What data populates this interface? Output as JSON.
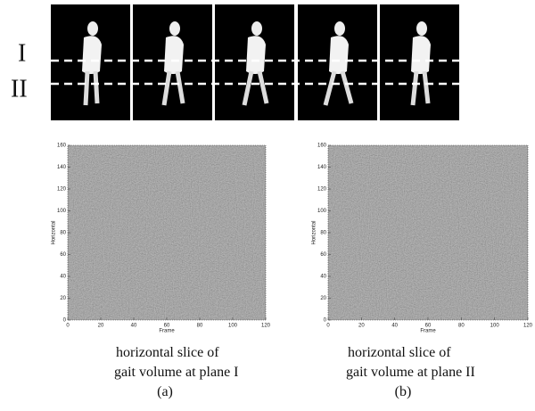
{
  "planes": [
    "I",
    "II"
  ],
  "plots": [
    {
      "xlabel": "Frame",
      "ylabel": "Horizontal",
      "xlim": [
        0,
        120
      ],
      "ylim": [
        0,
        160
      ],
      "xticks": [
        0,
        20,
        40,
        60,
        80,
        100,
        120
      ],
      "yticks": [
        0,
        20,
        40,
        60,
        80,
        100,
        120,
        140,
        160
      ],
      "caption": [
        "horizontal slice of",
        "gait volume at plane I"
      ],
      "label": "(a)"
    },
    {
      "xlabel": "Frame",
      "ylabel": "Horizontal",
      "xlim": [
        0,
        120
      ],
      "ylim": [
        0,
        160
      ],
      "xticks": [
        0,
        20,
        40,
        60,
        80,
        100,
        120
      ],
      "yticks": [
        0,
        20,
        40,
        60,
        80,
        100,
        120,
        140,
        160
      ],
      "caption": [
        "horizontal slice of",
        "gait volume at plane II"
      ],
      "label": "(b)"
    }
  ]
}
